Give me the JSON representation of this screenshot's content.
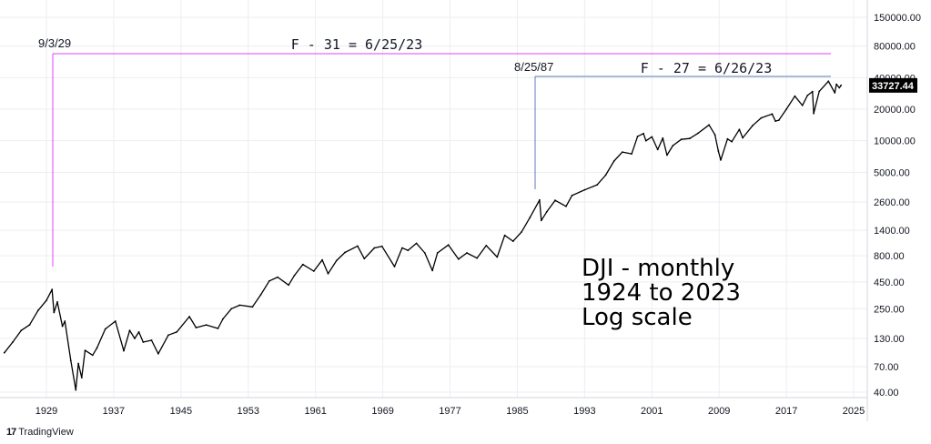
{
  "chart_data": {
    "type": "line",
    "title_lines": [
      "DJI - monthly",
      "1924 to 2023",
      "Log scale"
    ],
    "x_ticks": [
      "1929",
      "1937",
      "1945",
      "1953",
      "1961",
      "1969",
      "1977",
      "1985",
      "1993",
      "2001",
      "2009",
      "2017",
      "2025"
    ],
    "y_ticks": [
      "150000.00",
      "80000.00",
      "40000.00",
      "20000.00",
      "10000.00",
      "5000.00",
      "2600.00",
      "1400.00",
      "800.00",
      "450.00",
      "250.00",
      "130.00",
      "70.00",
      "40.00"
    ],
    "y_scale": "log",
    "last_value_label": "33727.44",
    "annotations": [
      {
        "date_label": "9/3/29",
        "text": "F - 31 = 6/25/23",
        "color": "#e040fb"
      },
      {
        "date_label": "8/25/87",
        "text": "F - 27 = 6/26/23",
        "color": "#5b7bb5"
      }
    ],
    "series": [
      {
        "values": [
          {
            "x": 1924.0,
            "y": 95
          },
          {
            "x": 1925.0,
            "y": 120
          },
          {
            "x": 1926.0,
            "y": 155
          },
          {
            "x": 1927.0,
            "y": 175
          },
          {
            "x": 1928.0,
            "y": 240
          },
          {
            "x": 1929.0,
            "y": 300
          },
          {
            "x": 1929.67,
            "y": 381
          },
          {
            "x": 1929.9,
            "y": 230
          },
          {
            "x": 1930.3,
            "y": 290
          },
          {
            "x": 1930.9,
            "y": 170
          },
          {
            "x": 1931.2,
            "y": 190
          },
          {
            "x": 1931.9,
            "y": 80
          },
          {
            "x": 1932.5,
            "y": 42
          },
          {
            "x": 1932.8,
            "y": 75
          },
          {
            "x": 1933.2,
            "y": 55
          },
          {
            "x": 1933.6,
            "y": 100
          },
          {
            "x": 1934.5,
            "y": 90
          },
          {
            "x": 1935.0,
            "y": 105
          },
          {
            "x": 1936.0,
            "y": 160
          },
          {
            "x": 1937.2,
            "y": 190
          },
          {
            "x": 1938.2,
            "y": 99
          },
          {
            "x": 1938.9,
            "y": 155
          },
          {
            "x": 1939.5,
            "y": 130
          },
          {
            "x": 1940.0,
            "y": 150
          },
          {
            "x": 1940.5,
            "y": 120
          },
          {
            "x": 1941.5,
            "y": 125
          },
          {
            "x": 1942.3,
            "y": 93
          },
          {
            "x": 1943.5,
            "y": 140
          },
          {
            "x": 1944.5,
            "y": 150
          },
          {
            "x": 1946.0,
            "y": 210
          },
          {
            "x": 1946.8,
            "y": 165
          },
          {
            "x": 1948.0,
            "y": 175
          },
          {
            "x": 1949.4,
            "y": 162
          },
          {
            "x": 1950.0,
            "y": 200
          },
          {
            "x": 1951.0,
            "y": 250
          },
          {
            "x": 1952.0,
            "y": 270
          },
          {
            "x": 1953.5,
            "y": 260
          },
          {
            "x": 1954.5,
            "y": 340
          },
          {
            "x": 1955.5,
            "y": 460
          },
          {
            "x": 1956.5,
            "y": 500
          },
          {
            "x": 1957.8,
            "y": 420
          },
          {
            "x": 1958.5,
            "y": 520
          },
          {
            "x": 1959.5,
            "y": 660
          },
          {
            "x": 1960.8,
            "y": 570
          },
          {
            "x": 1961.8,
            "y": 730
          },
          {
            "x": 1962.5,
            "y": 540
          },
          {
            "x": 1963.5,
            "y": 720
          },
          {
            "x": 1964.5,
            "y": 860
          },
          {
            "x": 1966.0,
            "y": 990
          },
          {
            "x": 1966.8,
            "y": 750
          },
          {
            "x": 1968.0,
            "y": 950
          },
          {
            "x": 1968.9,
            "y": 985
          },
          {
            "x": 1970.4,
            "y": 630
          },
          {
            "x": 1971.3,
            "y": 950
          },
          {
            "x": 1972.0,
            "y": 900
          },
          {
            "x": 1973.0,
            "y": 1051
          },
          {
            "x": 1974.0,
            "y": 850
          },
          {
            "x": 1974.9,
            "y": 577
          },
          {
            "x": 1975.5,
            "y": 850
          },
          {
            "x": 1976.8,
            "y": 1014
          },
          {
            "x": 1978.0,
            "y": 742
          },
          {
            "x": 1979.0,
            "y": 850
          },
          {
            "x": 1980.2,
            "y": 760
          },
          {
            "x": 1981.3,
            "y": 1000
          },
          {
            "x": 1982.6,
            "y": 777
          },
          {
            "x": 1983.5,
            "y": 1250
          },
          {
            "x": 1984.5,
            "y": 1100
          },
          {
            "x": 1985.5,
            "y": 1350
          },
          {
            "x": 1986.5,
            "y": 1850
          },
          {
            "x": 1987.65,
            "y": 2722
          },
          {
            "x": 1987.85,
            "y": 1738
          },
          {
            "x": 1988.5,
            "y": 2100
          },
          {
            "x": 1989.5,
            "y": 2700
          },
          {
            "x": 1990.8,
            "y": 2365
          },
          {
            "x": 1991.5,
            "y": 3000
          },
          {
            "x": 1993.0,
            "y": 3400
          },
          {
            "x": 1994.5,
            "y": 3800
          },
          {
            "x": 1995.5,
            "y": 4700
          },
          {
            "x": 1996.5,
            "y": 6400
          },
          {
            "x": 1997.5,
            "y": 7800
          },
          {
            "x": 1998.6,
            "y": 7500
          },
          {
            "x": 1999.3,
            "y": 11000
          },
          {
            "x": 2000.0,
            "y": 11700
          },
          {
            "x": 2000.3,
            "y": 10000
          },
          {
            "x": 2001.0,
            "y": 10900
          },
          {
            "x": 2001.7,
            "y": 8235
          },
          {
            "x": 2002.3,
            "y": 10600
          },
          {
            "x": 2002.8,
            "y": 7286
          },
          {
            "x": 2003.5,
            "y": 9000
          },
          {
            "x": 2004.5,
            "y": 10300
          },
          {
            "x": 2005.5,
            "y": 10500
          },
          {
            "x": 2006.5,
            "y": 11800
          },
          {
            "x": 2007.8,
            "y": 14164
          },
          {
            "x": 2008.5,
            "y": 11400
          },
          {
            "x": 2008.9,
            "y": 8000
          },
          {
            "x": 2009.2,
            "y": 6547
          },
          {
            "x": 2010.0,
            "y": 10400
          },
          {
            "x": 2010.5,
            "y": 9800
          },
          {
            "x": 2011.4,
            "y": 12800
          },
          {
            "x": 2011.8,
            "y": 10650
          },
          {
            "x": 2013.0,
            "y": 14000
          },
          {
            "x": 2014.0,
            "y": 16500
          },
          {
            "x": 2015.3,
            "y": 18000
          },
          {
            "x": 2015.7,
            "y": 15400
          },
          {
            "x": 2016.1,
            "y": 15700
          },
          {
            "x": 2017.0,
            "y": 20000
          },
          {
            "x": 2018.0,
            "y": 26600
          },
          {
            "x": 2018.9,
            "y": 21700
          },
          {
            "x": 2019.5,
            "y": 27000
          },
          {
            "x": 2020.1,
            "y": 29500
          },
          {
            "x": 2020.25,
            "y": 18200
          },
          {
            "x": 2020.9,
            "y": 29600
          },
          {
            "x": 2022.0,
            "y": 36950
          },
          {
            "x": 2022.75,
            "y": 28660
          },
          {
            "x": 2022.95,
            "y": 34600
          },
          {
            "x": 2023.3,
            "y": 32000
          },
          {
            "x": 2023.5,
            "y": 33727.44
          }
        ]
      }
    ]
  },
  "footer": {
    "logo_mark": "17",
    "logo_text": "TradingView"
  },
  "colors": {
    "line": "#000000",
    "anno1": "#e040fb",
    "anno2": "#5b7bb5",
    "last_bg": "#000000"
  }
}
